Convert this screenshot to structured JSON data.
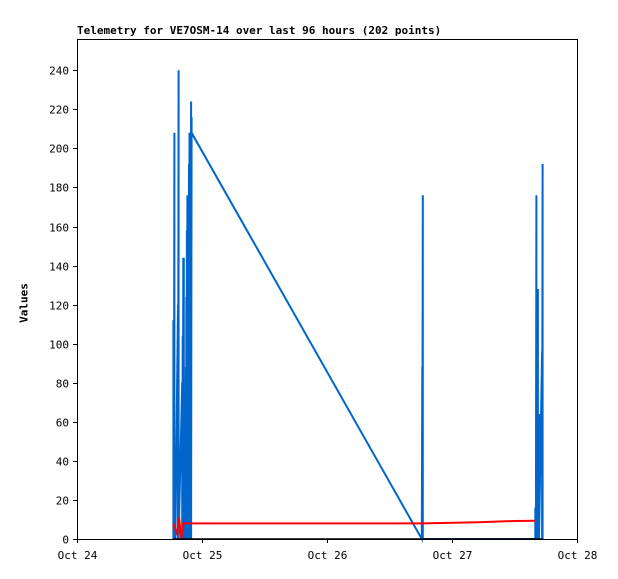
{
  "chart_data": {
    "type": "line",
    "title": "Telemetry for VE7OSM-14 over last 96 hours (202 points)",
    "xlabel": "",
    "ylabel": "Values",
    "x_tick_labels": [
      "Oct 24",
      "Oct 25",
      "Oct 26",
      "Oct 27",
      "Oct 28"
    ],
    "y_ticks": [
      0,
      20,
      40,
      60,
      80,
      100,
      120,
      140,
      160,
      180,
      200,
      220,
      240
    ],
    "xlim": [
      0,
      96
    ],
    "ylim": [
      0,
      256
    ],
    "grid": false,
    "legend": "none",
    "series": [
      {
        "color": "#0066cc",
        "points": [
          [
            18.5,
            0
          ],
          [
            18.5,
            112
          ],
          [
            18.5,
            0
          ],
          [
            18.6,
            104
          ],
          [
            18.6,
            0
          ],
          [
            18.7,
            208
          ],
          [
            18.7,
            0
          ],
          [
            18.8,
            32
          ],
          [
            18.8,
            0
          ],
          [
            18.9,
            16
          ],
          [
            18.9,
            0
          ],
          [
            19.4,
            120
          ],
          [
            19.4,
            0
          ],
          [
            19.5,
            240
          ],
          [
            19.5,
            0
          ],
          [
            20.2,
            80
          ],
          [
            20.2,
            0
          ],
          [
            20.3,
            104
          ],
          [
            20.3,
            0
          ],
          [
            20.4,
            144
          ],
          [
            20.4,
            0
          ],
          [
            20.5,
            144
          ],
          [
            20.5,
            0
          ],
          [
            20.6,
            72
          ],
          [
            20.6,
            0
          ],
          [
            20.8,
            52
          ],
          [
            20.8,
            0
          ],
          [
            20.9,
            88
          ],
          [
            20.9,
            0
          ],
          [
            21.0,
            124
          ],
          [
            21.0,
            0
          ],
          [
            21.1,
            158
          ],
          [
            21.1,
            0
          ],
          [
            21.2,
            176
          ],
          [
            21.2,
            0
          ],
          [
            21.3,
            128
          ],
          [
            21.3,
            0
          ],
          [
            21.5,
            192
          ],
          [
            21.5,
            0
          ],
          [
            21.6,
            208
          ],
          [
            21.6,
            0
          ],
          [
            21.8,
            176
          ],
          [
            21.8,
            0
          ],
          [
            21.9,
            224
          ],
          [
            21.9,
            0
          ],
          [
            22.0,
            216
          ],
          [
            22.0,
            208
          ],
          [
            66.2,
            0
          ],
          [
            66.3,
            88
          ],
          [
            66.3,
            0
          ],
          [
            66.4,
            176
          ],
          [
            66.4,
            0
          ],
          [
            88.0,
            0
          ],
          [
            88.0,
            16
          ],
          [
            88.1,
            0
          ],
          [
            88.2,
            176
          ],
          [
            88.2,
            0
          ],
          [
            88.4,
            128
          ],
          [
            88.4,
            0
          ],
          [
            88.5,
            128
          ],
          [
            88.5,
            0
          ],
          [
            88.7,
            64
          ],
          [
            88.7,
            0
          ],
          [
            89.3,
            96
          ],
          [
            89.3,
            0
          ],
          [
            89.4,
            192
          ],
          [
            89.4,
            0
          ]
        ]
      },
      {
        "color": "#ff0000",
        "points": [
          [
            18.5,
            8
          ],
          [
            18.8,
            6
          ],
          [
            19.2,
            2
          ],
          [
            19.6,
            11
          ],
          [
            20.0,
            0
          ],
          [
            20.4,
            8
          ],
          [
            21.0,
            8
          ],
          [
            40.0,
            8
          ],
          [
            60.0,
            8
          ],
          [
            66.2,
            8
          ],
          [
            70.0,
            8.2
          ],
          [
            77.0,
            8.6
          ],
          [
            84.0,
            9.2
          ],
          [
            88.0,
            9.3
          ]
        ]
      },
      {
        "color": "#000000",
        "points": [
          [
            18.5,
            0
          ],
          [
            89.4,
            0
          ]
        ]
      }
    ]
  }
}
